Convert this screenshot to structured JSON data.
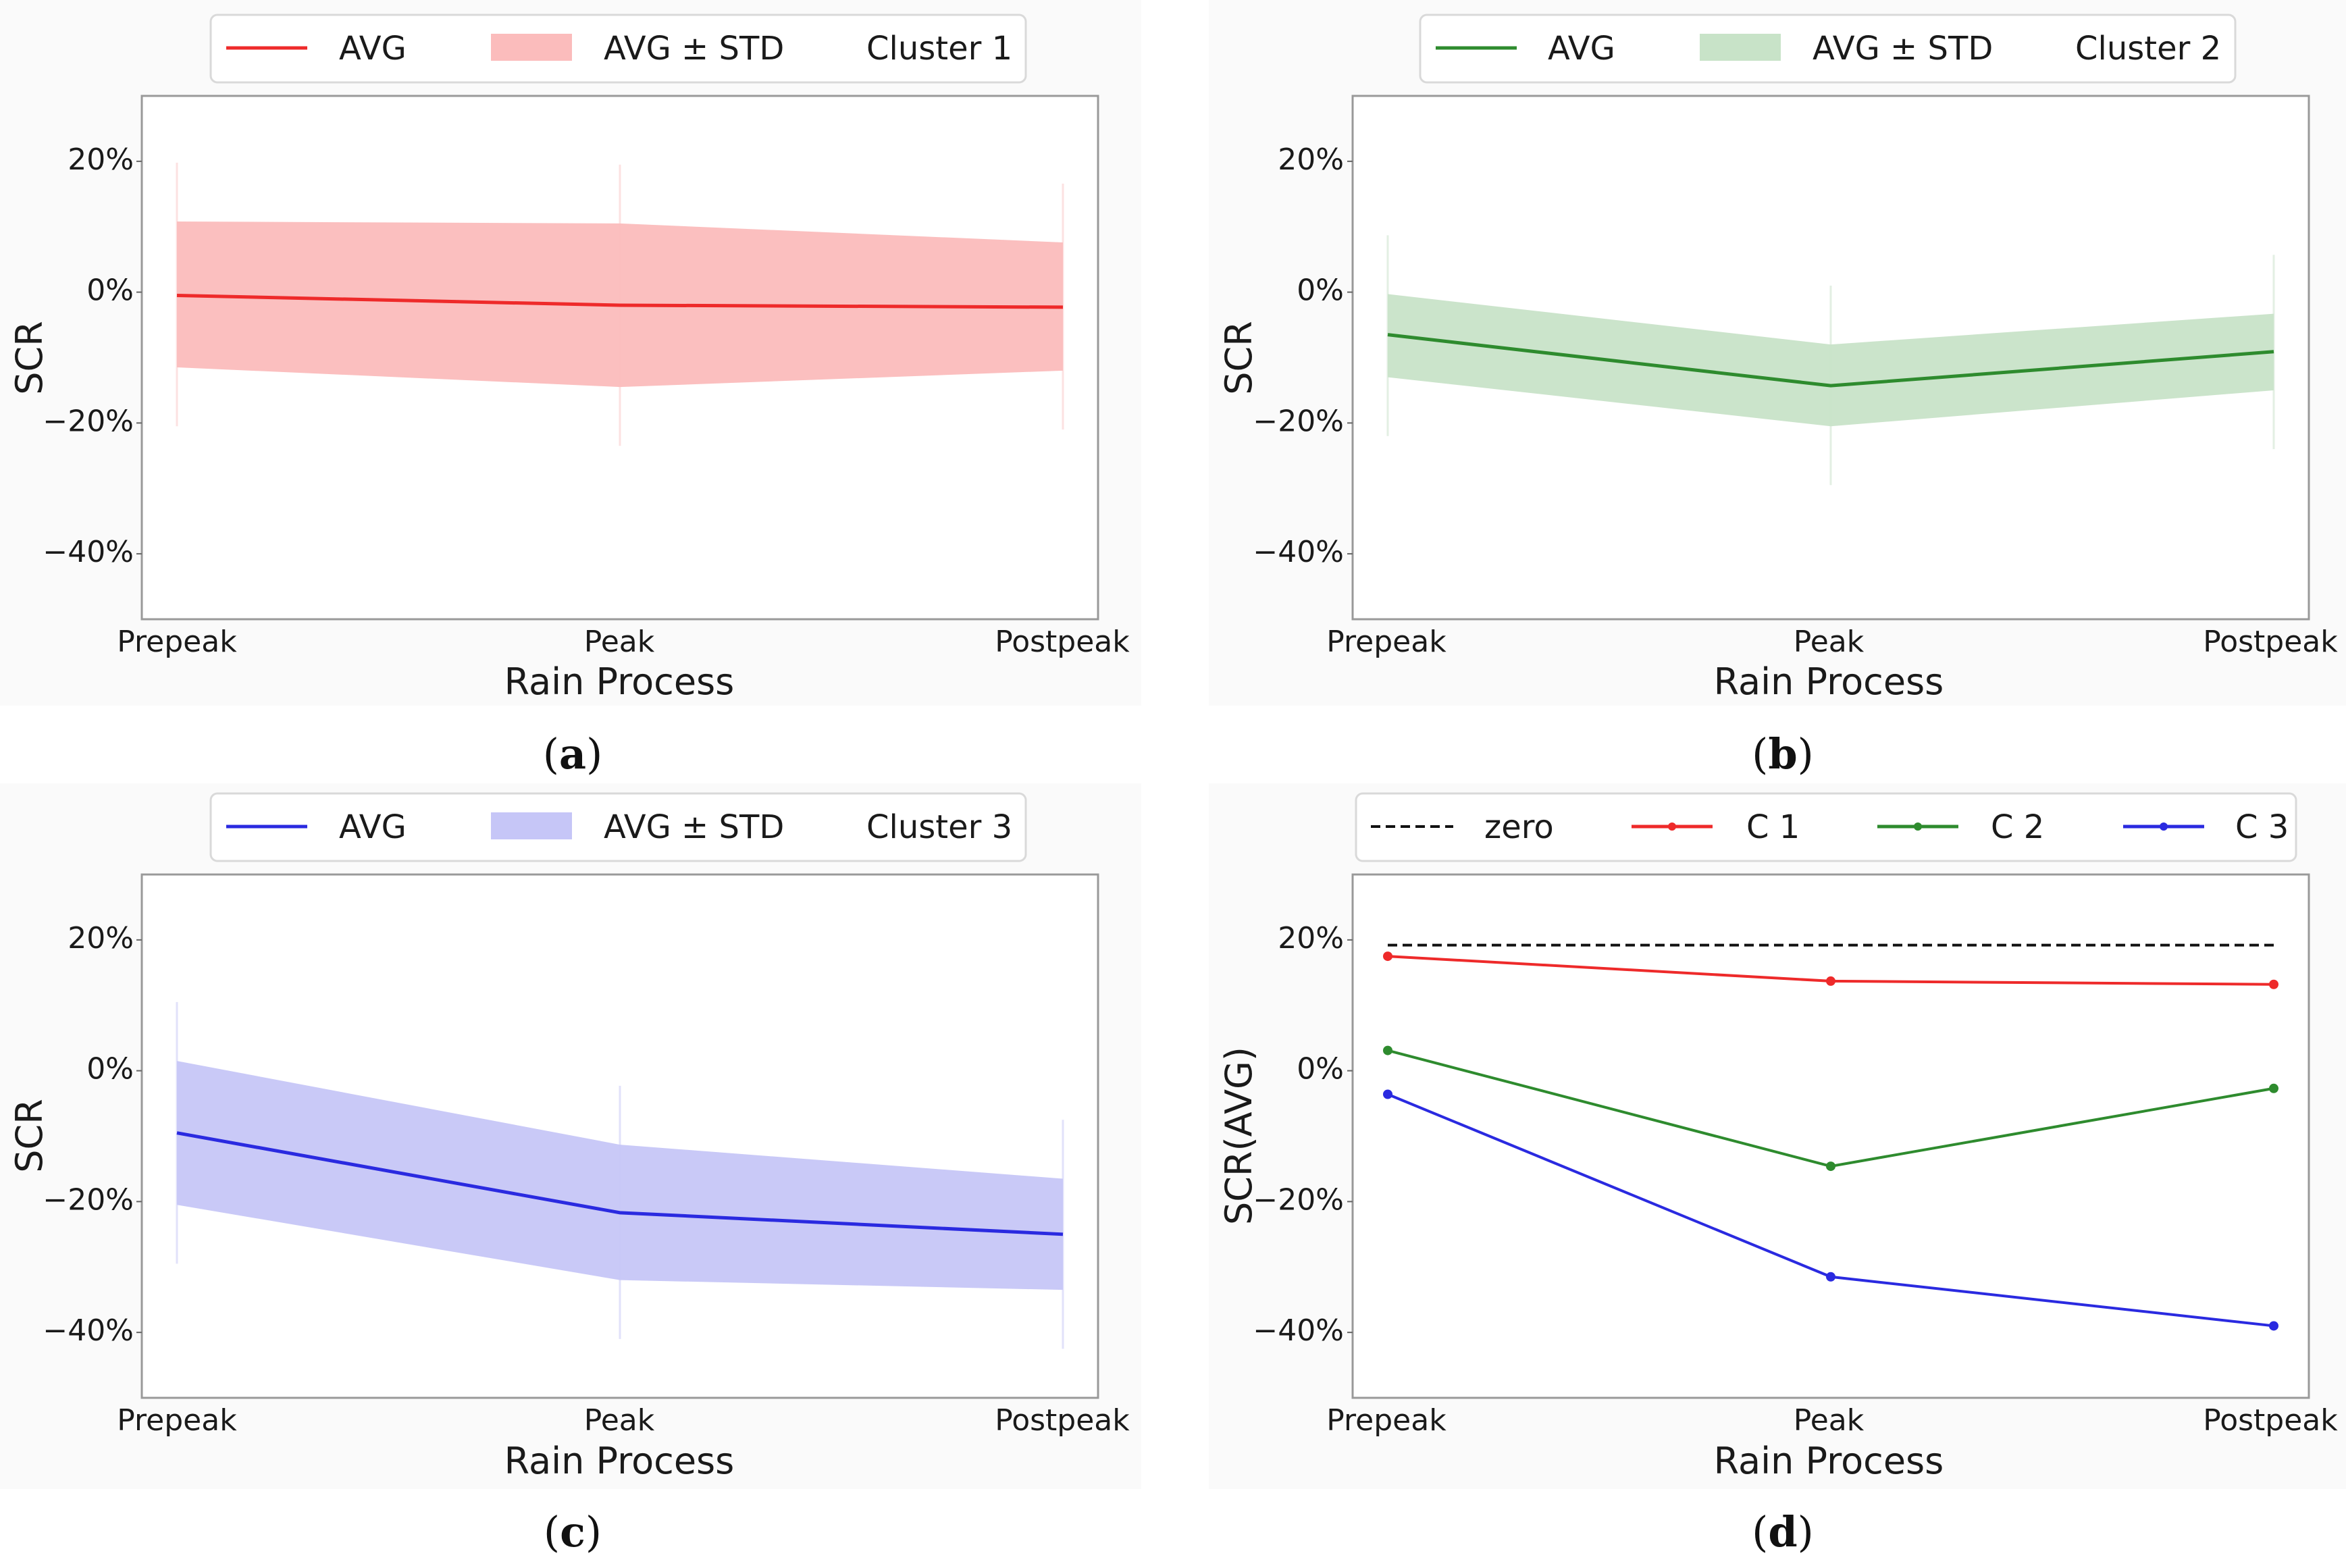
{
  "colors": {
    "cluster1": "#ee2a2a",
    "cluster2": "#2e8b2e",
    "cluster3": "#2a2ae0",
    "band1": "#fbbcbc",
    "band2": "#c8e3c8",
    "band3": "#c6c6f7",
    "zero": "#111111"
  },
  "chart_data": [
    {
      "id": "a",
      "caption": "a",
      "type": "area",
      "categories": [
        "Prepeak",
        "Peak",
        "Postpeak"
      ],
      "xlabel": "Rain Process",
      "ylabel": "SCR",
      "ylim": [
        -50,
        30
      ],
      "yticks": [
        20,
        0,
        -20,
        -40
      ],
      "ytick_labels": [
        "20%",
        "0%",
        "−20%",
        "−40%"
      ],
      "legend": {
        "avg": "AVG",
        "band": "AVG ± STD",
        "title": "Cluster 1"
      },
      "series": [
        {
          "name": "AVG",
          "values": [
            -0.5,
            -2.0,
            -2.3
          ]
        },
        {
          "name": "AVG - STD",
          "values": [
            -11.5,
            -14.5,
            -12.0
          ]
        },
        {
          "name": "AVG + STD",
          "values": [
            10.8,
            10.5,
            7.6
          ]
        }
      ]
    },
    {
      "id": "b",
      "caption": "b",
      "type": "area",
      "categories": [
        "Prepeak",
        "Peak",
        "Postpeak"
      ],
      "xlabel": "Rain Process",
      "ylabel": "SCR",
      "ylim": [
        -50,
        30
      ],
      "yticks": [
        20,
        0,
        -20,
        -40
      ],
      "ytick_labels": [
        "20%",
        "0%",
        "−20%",
        "−40%"
      ],
      "legend": {
        "avg": "AVG",
        "band": "AVG ± STD",
        "title": "Cluster 2"
      },
      "series": [
        {
          "name": "AVG",
          "values": [
            -6.5,
            -14.3,
            -9.1
          ]
        },
        {
          "name": "AVG - STD",
          "values": [
            -13.0,
            -20.5,
            -15.0
          ]
        },
        {
          "name": "AVG + STD",
          "values": [
            -0.3,
            -8.0,
            -3.3
          ]
        }
      ]
    },
    {
      "id": "c",
      "caption": "c",
      "type": "area",
      "categories": [
        "Prepeak",
        "Peak",
        "Postpeak"
      ],
      "xlabel": "Rain Process",
      "ylabel": "SCR",
      "ylim": [
        -50,
        30
      ],
      "yticks": [
        20,
        0,
        -20,
        -40
      ],
      "ytick_labels": [
        "20%",
        "0%",
        "−20%",
        "−40%"
      ],
      "legend": {
        "avg": "AVG",
        "band": "AVG ± STD",
        "title": "Cluster 3"
      },
      "series": [
        {
          "name": "AVG",
          "values": [
            -9.5,
            -21.7,
            -25.0
          ]
        },
        {
          "name": "AVG - STD",
          "values": [
            -20.5,
            -32.0,
            -33.5
          ]
        },
        {
          "name": "AVG + STD",
          "values": [
            1.5,
            -11.3,
            -16.5
          ]
        }
      ]
    },
    {
      "id": "d",
      "caption": "d",
      "type": "line",
      "categories": [
        "Prepeak",
        "Peak",
        "Postpeak"
      ],
      "xlabel": "Rain Process",
      "ylabel": "SCR(AVG)",
      "ylim": [
        -50,
        30
      ],
      "yticks": [
        20,
        0,
        -20,
        -40
      ],
      "ytick_labels": [
        "20%",
        "0%",
        "−20%",
        "−40%"
      ],
      "legend": {
        "zero": "zero",
        "c1": "C 1",
        "c2": "C 2",
        "c3": "C 3"
      },
      "series": [
        {
          "name": "zero",
          "values": [
            19.2,
            19.2,
            19.2
          ]
        },
        {
          "name": "C 1",
          "values": [
            17.5,
            13.7,
            13.2
          ]
        },
        {
          "name": "C 2",
          "values": [
            3.1,
            -14.6,
            -2.7
          ]
        },
        {
          "name": "C 3",
          "values": [
            -3.6,
            -31.5,
            -39.0
          ]
        }
      ]
    }
  ]
}
